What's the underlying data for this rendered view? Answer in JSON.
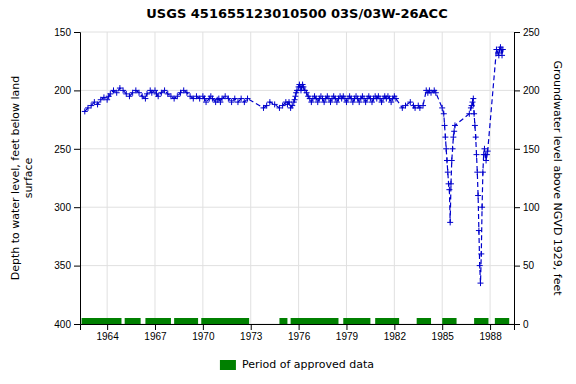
{
  "chart_data": {
    "type": "line",
    "title": "USGS 451655123010500 03S/03W-26ACC",
    "ylabel": "Depth to water level, feet below land\nsurface",
    "y2label": "Groundwater level above NGVD 1929, feet",
    "xlim": [
      1962.3,
      1989.5
    ],
    "xticks": [
      1964,
      1967,
      1970,
      1973,
      1976,
      1979,
      1982,
      1985,
      1988
    ],
    "ylim": [
      400,
      150
    ],
    "yticks": [
      150,
      200,
      250,
      300,
      350,
      400
    ],
    "y2lim": [
      0,
      250
    ],
    "y2ticks": [
      0,
      50,
      100,
      150,
      200,
      250
    ],
    "grid": true,
    "legend": "bottom",
    "x": [
      1962.6,
      1962.8,
      1963.0,
      1963.2,
      1963.4,
      1963.6,
      1963.8,
      1964.0,
      1964.1,
      1964.2,
      1964.4,
      1964.6,
      1964.8,
      1965.0,
      1965.2,
      1965.4,
      1965.6,
      1965.8,
      1966.0,
      1966.2,
      1966.4,
      1966.5,
      1966.7,
      1966.8,
      1967.0,
      1967.1,
      1967.2,
      1967.4,
      1967.6,
      1967.8,
      1968.0,
      1968.2,
      1968.4,
      1968.6,
      1968.8,
      1969.0,
      1969.2,
      1969.4,
      1969.6,
      1969.8,
      1970.0,
      1970.1,
      1970.2,
      1970.4,
      1970.5,
      1970.6,
      1970.8,
      1970.9,
      1971.0,
      1971.1,
      1971.2,
      1971.4,
      1971.6,
      1971.8,
      1972.0,
      1972.2,
      1972.4,
      1972.6,
      1972.8,
      1973.8,
      1974.0,
      1974.2,
      1974.5,
      1974.8,
      1975.0,
      1975.2,
      1975.3,
      1975.4,
      1975.5,
      1975.6,
      1975.7,
      1975.75,
      1975.8,
      1975.85,
      1975.9,
      1976.0,
      1976.05,
      1976.1,
      1976.15,
      1976.2,
      1976.25,
      1976.3,
      1976.4,
      1976.5,
      1976.6,
      1976.7,
      1976.8,
      1976.9,
      1977.0,
      1977.1,
      1977.2,
      1977.3,
      1977.4,
      1977.5,
      1977.6,
      1977.7,
      1977.8,
      1977.9,
      1978.0,
      1978.1,
      1978.2,
      1978.3,
      1978.4,
      1978.5,
      1978.6,
      1978.7,
      1978.8,
      1978.9,
      1979.0,
      1979.1,
      1979.2,
      1979.3,
      1979.4,
      1979.5,
      1979.6,
      1979.7,
      1979.8,
      1979.9,
      1980.0,
      1980.1,
      1980.2,
      1980.3,
      1980.4,
      1980.5,
      1980.6,
      1980.7,
      1980.8,
      1980.9,
      1981.0,
      1981.1,
      1981.2,
      1981.3,
      1981.4,
      1981.5,
      1981.6,
      1981.7,
      1981.8,
      1981.9,
      1982.0,
      1982.1,
      1982.5,
      1982.7,
      1983.0,
      1983.2,
      1983.3,
      1983.5,
      1983.6,
      1983.8,
      1984.0,
      1984.1,
      1984.2,
      1984.3,
      1984.5,
      1984.6,
      1985.0,
      1985.1,
      1985.15,
      1985.2,
      1985.25,
      1985.3,
      1985.35,
      1985.4,
      1985.45,
      1985.5,
      1985.55,
      1985.6,
      1985.65,
      1985.7,
      1985.75,
      1985.8,
      1986.7,
      1986.8,
      1986.85,
      1986.9,
      1986.95,
      1987.0,
      1987.05,
      1987.1,
      1987.15,
      1987.2,
      1987.25,
      1987.3,
      1987.35,
      1987.4,
      1987.45,
      1987.5,
      1987.55,
      1987.6,
      1987.65,
      1987.7,
      1987.75,
      1987.8,
      1987.85,
      1988.4,
      1988.5,
      1988.55,
      1988.6,
      1988.65,
      1988.7,
      1988.75,
      1988.8
    ],
    "series": [
      {
        "type": "line",
        "color": "#0000cc",
        "marker": "plus",
        "line_style": "dashed",
        "values": [
          218,
          215,
          213,
          210,
          212,
          208,
          206,
          208,
          205,
          203,
          200,
          202,
          198,
          200,
          203,
          205,
          202,
          200,
          202,
          205,
          207,
          203,
          200,
          202,
          200,
          203,
          205,
          202,
          200,
          203,
          205,
          207,
          205,
          202,
          200,
          202,
          205,
          207,
          205,
          207,
          205,
          207,
          210,
          207,
          205,
          207,
          210,
          208,
          207,
          210,
          207,
          205,
          207,
          210,
          207,
          210,
          207,
          210,
          207,
          215,
          213,
          210,
          212,
          215,
          213,
          210,
          212,
          210,
          215,
          213,
          210,
          208,
          205,
          202,
          200,
          197,
          195,
          197,
          200,
          197,
          195,
          197,
          200,
          202,
          205,
          207,
          210,
          207,
          205,
          207,
          210,
          207,
          205,
          207,
          210,
          207,
          205,
          207,
          210,
          207,
          205,
          207,
          210,
          207,
          205,
          207,
          205,
          207,
          210,
          207,
          205,
          207,
          210,
          207,
          205,
          207,
          210,
          207,
          205,
          207,
          210,
          207,
          205,
          207,
          210,
          207,
          205,
          207,
          205,
          207,
          210,
          207,
          205,
          207,
          205,
          207,
          210,
          207,
          205,
          207,
          215,
          213,
          210,
          213,
          215,
          213,
          215,
          213,
          200,
          202,
          200,
          202,
          200,
          202,
          215,
          220,
          230,
          240,
          250,
          260,
          270,
          280,
          285,
          313,
          280,
          260,
          250,
          240,
          235,
          230,
          220,
          215,
          213,
          210,
          207,
          220,
          230,
          240,
          255,
          270,
          290,
          320,
          350,
          365,
          340,
          300,
          270,
          255,
          250,
          255,
          260,
          255,
          252,
          165,
          168,
          170,
          165,
          163,
          165,
          170,
          165
        ]
      },
      {
        "type": "band",
        "name": "Period of approved data",
        "color": "#008000",
        "y": 400,
        "values": [
          [
            1962.4,
            1964.9
          ],
          [
            1965.1,
            1966.1
          ],
          [
            1966.4,
            1968.0
          ],
          [
            1968.2,
            1969.7
          ],
          [
            1969.9,
            1972.9
          ],
          [
            1974.8,
            1975.3
          ],
          [
            1975.5,
            1978.5
          ],
          [
            1978.8,
            1980.5
          ],
          [
            1980.8,
            1982.3
          ],
          [
            1983.4,
            1984.3
          ],
          [
            1985.0,
            1985.9
          ],
          [
            1987.0,
            1987.9
          ],
          [
            1988.3,
            1989.2
          ]
        ]
      }
    ]
  }
}
